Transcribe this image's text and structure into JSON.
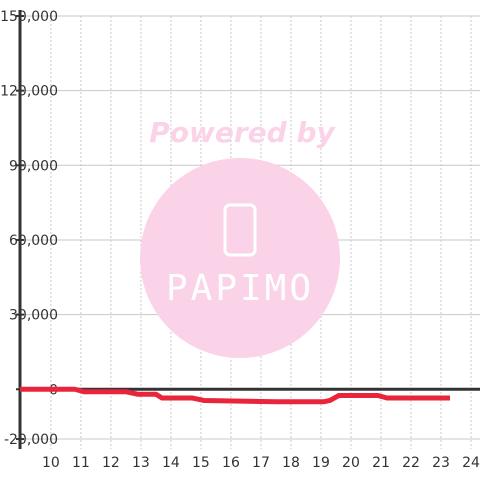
{
  "chart_data": {
    "type": "line",
    "watermark": {
      "top": "Powered by",
      "logo": "PAPIMO"
    },
    "x": [
      8.97,
      10.8,
      11.1,
      12.5,
      12.9,
      13.5,
      13.7,
      14.7,
      15.1,
      17.5,
      19.1,
      19.3,
      19.6,
      20.9,
      21.2,
      23.3
    ],
    "series": [
      {
        "color": "#e8253a",
        "values": [
          0,
          0,
          -1000,
          -1000,
          -2000,
          -2000,
          -3500,
          -3500,
          -4500,
          -5000,
          -5000,
          -4500,
          -2500,
          -2500,
          -3500,
          -3500
        ]
      }
    ],
    "xlim": [
      8.97,
      24.3
    ],
    "xticks": [
      10,
      11,
      12,
      13,
      14,
      15,
      16,
      17,
      18,
      19,
      20,
      21,
      22,
      23,
      24
    ],
    "ylim": [
      -24000,
      150000
    ],
    "yticks": [
      {
        "value": -20000,
        "label": "-20,000"
      },
      0,
      {
        "value": 30000,
        "label": "30,000"
      },
      {
        "value": 60000,
        "label": "60,000"
      },
      {
        "value": 90000,
        "label": "90,000"
      },
      {
        "value": 120000,
        "label": "120,000"
      },
      {
        "value": 150000,
        "label": "150,000"
      }
    ],
    "grid": true
  }
}
